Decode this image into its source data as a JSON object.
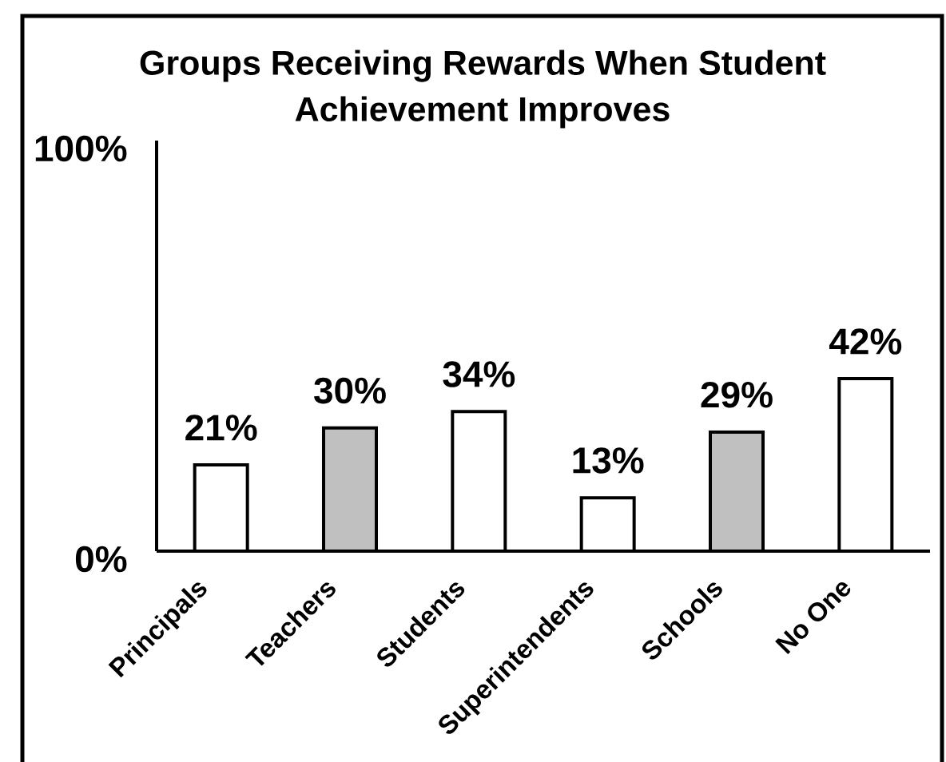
{
  "chart_data": {
    "type": "bar",
    "title": "Groups Receiving Rewards When Student Achievement Improves",
    "categories": [
      "Principals",
      "Teachers",
      "Students",
      "Superintendents",
      "Schools",
      "No One"
    ],
    "values": [
      21,
      30,
      34,
      13,
      29,
      42
    ],
    "colors": [
      "#ffffff",
      "#c0c0c0",
      "#ffffff",
      "#ffffff",
      "#c0c0c0",
      "#ffffff"
    ],
    "value_labels": [
      "21%",
      "30%",
      "34%",
      "13%",
      "29%",
      "42%"
    ],
    "ylim": [
      0,
      100
    ],
    "yticks": [
      {
        "value": 0,
        "label": "0%"
      },
      {
        "value": 100,
        "label": "100%"
      }
    ]
  }
}
